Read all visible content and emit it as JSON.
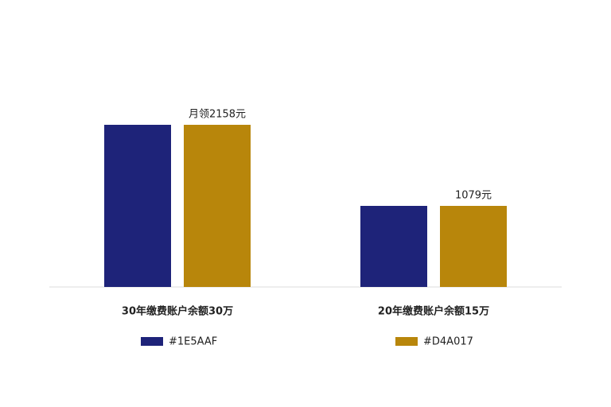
{
  "chart_data": {
    "type": "bar",
    "categories": [
      "30年缴费账户余额30万",
      "20年缴费账户余额15万"
    ],
    "series": [
      {
        "name": "#1E5AAF",
        "color": "#1e2379",
        "values": [
          2158,
          1079
        ]
      },
      {
        "name": "#D4A017",
        "color": "#b8860b",
        "values": [
          2158,
          1079
        ],
        "value_labels": [
          "月领2158元",
          "1079元"
        ]
      }
    ]
  }
}
